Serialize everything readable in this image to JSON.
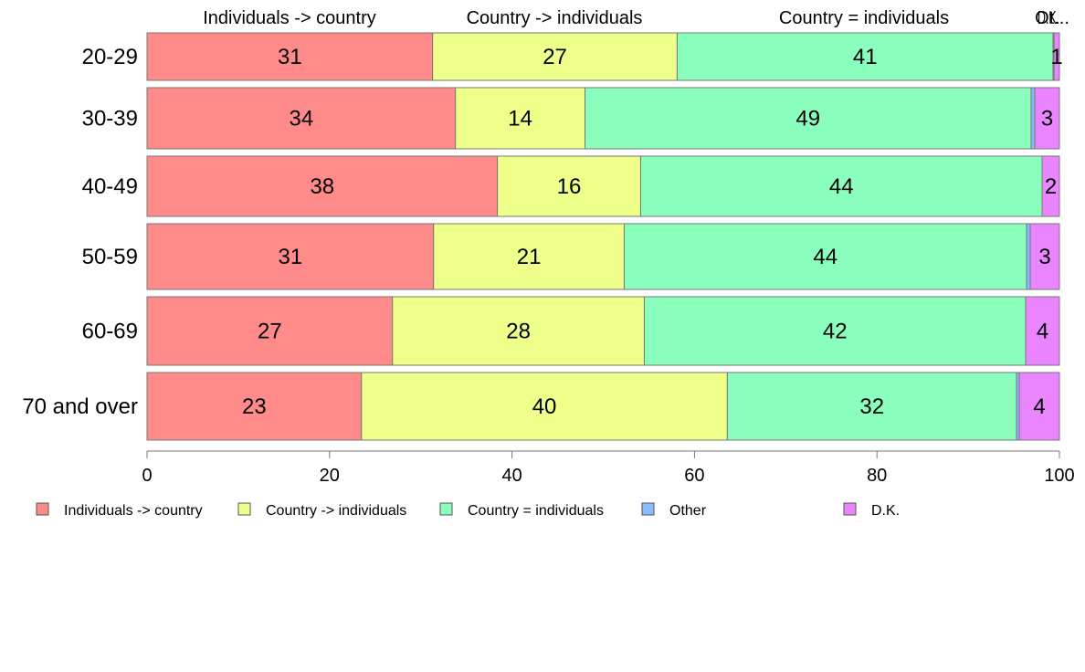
{
  "chart_data": {
    "type": "bar",
    "orientation": "horizontal",
    "stacked": true,
    "categories": [
      "20-29",
      "30-39",
      "40-49",
      "50-59",
      "60-69",
      "70 and over"
    ],
    "series": [
      {
        "name": "Individuals -> country",
        "color": "#ff8a8a",
        "values": [
          31.3,
          33.8,
          38.4,
          31.4,
          26.9,
          23.5
        ]
      },
      {
        "name": "Country -> individuals",
        "color": "#eeff8a",
        "values": [
          26.8,
          14.2,
          15.7,
          20.9,
          27.6,
          40.1
        ]
      },
      {
        "name": "Country = individuals",
        "color": "#8affbd",
        "values": [
          41.2,
          48.9,
          44.0,
          44.1,
          41.8,
          31.7
        ]
      },
      {
        "name": "Other",
        "color": "#8abaff",
        "values": [
          0.1,
          0.4,
          0.0,
          0.4,
          0.0,
          0.3
        ]
      },
      {
        "name": "D.K.",
        "color": "#ea85ff",
        "values": [
          0.6,
          2.7,
          1.9,
          3.2,
          3.7,
          4.4
        ]
      }
    ],
    "data_labels": [
      [
        "31",
        "27",
        "41",
        "",
        "1"
      ],
      [
        "34",
        "14",
        "49",
        "",
        "3"
      ],
      [
        "38",
        "16",
        "44",
        "",
        "2"
      ],
      [
        "31",
        "21",
        "44",
        "",
        "3"
      ],
      [
        "27",
        "28",
        "42",
        "",
        "4"
      ],
      [
        "23",
        "40",
        "32",
        "",
        "4"
      ]
    ],
    "top_labels": [
      "Individuals -> country",
      "Country -> individuals",
      "Country = individuals",
      "Ot..."
    ],
    "top_label_overlap_text": "D.K.",
    "x_ticks": [
      "0",
      "20",
      "40",
      "60",
      "80",
      "100"
    ],
    "xlim": [
      0,
      100
    ],
    "grid": false,
    "legend_position": "bottom",
    "title": "",
    "xlabel": "",
    "ylabel": ""
  }
}
